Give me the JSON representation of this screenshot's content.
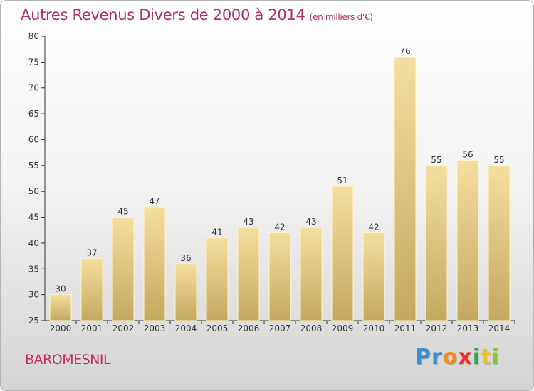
{
  "title": "Autres Revenus Divers de 2000 à 2014",
  "title_unit": "(en milliers d'€)",
  "commune": "BAROMESNIL",
  "logo": {
    "letters": [
      "P",
      "r",
      "o",
      "x",
      "i",
      "t",
      "i"
    ],
    "colors": [
      "#3a8fd4",
      "#3a8fd4",
      "#f08a1c",
      "#e8342a",
      "#2bab4a",
      "#f0c020",
      "#8ac43a"
    ]
  },
  "colors": {
    "bar_light": "#f5df9e",
    "bar_dark": "#c4a860",
    "title": "#b0325a"
  },
  "chart_data": {
    "type": "bar",
    "categories": [
      "2000",
      "2001",
      "2002",
      "2003",
      "2004",
      "2005",
      "2006",
      "2007",
      "2008",
      "2009",
      "2010",
      "2011",
      "2012",
      "2013",
      "2014"
    ],
    "values": [
      30,
      37,
      45,
      47,
      36,
      41,
      43,
      42,
      43,
      51,
      42,
      76,
      55,
      56,
      55
    ],
    "ylim": [
      25,
      80
    ],
    "yticks": [
      25,
      30,
      35,
      40,
      45,
      50,
      55,
      60,
      65,
      70,
      75,
      80
    ],
    "grid": false,
    "data_labels": true
  }
}
